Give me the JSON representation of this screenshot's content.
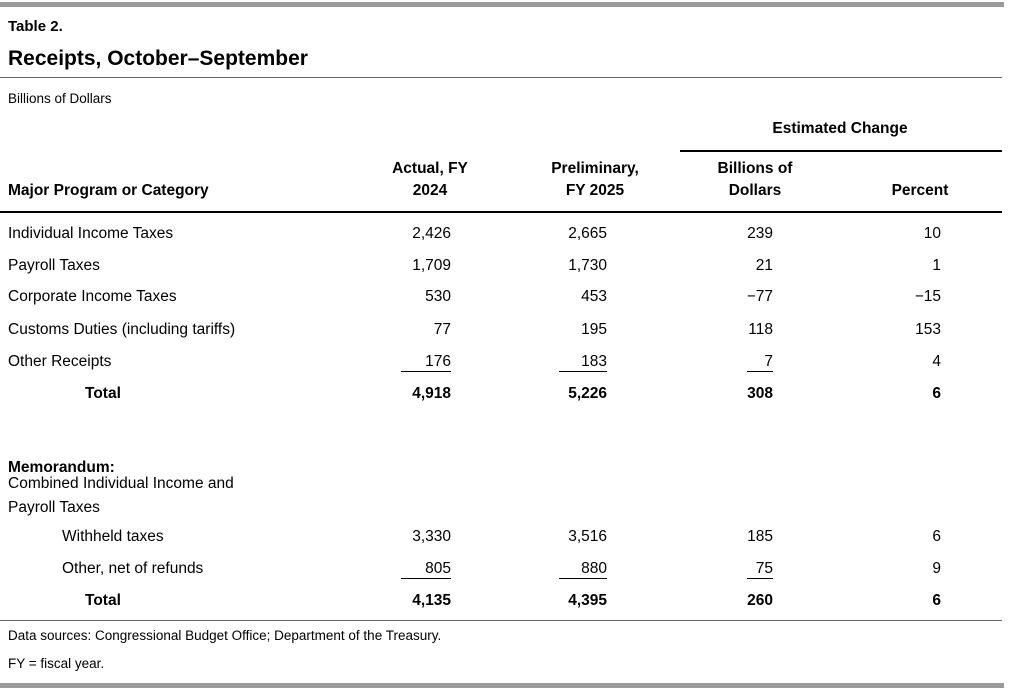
{
  "header": {
    "label": "Table 2.",
    "title": "Receipts, October–September",
    "units": "Billions of Dollars"
  },
  "table": {
    "group_header": "Estimated Change",
    "columns": [
      "Major Program or Category",
      "Actual, FY 2024",
      "Preliminary, FY 2025",
      "Billions of Dollars",
      "Percent"
    ],
    "rows": [
      [
        "Individual Income Taxes",
        "2,426",
        "2,665",
        "239",
        "10"
      ],
      [
        "Payroll Taxes",
        "1,709",
        "1,730",
        "21",
        "1"
      ],
      [
        "Corporate Income Taxes",
        "530",
        "453",
        "−77",
        "−15"
      ],
      [
        "Customs Duties (including tariffs)",
        "77",
        "195",
        "118",
        "153"
      ],
      [
        "Other Receipts",
        "176",
        "183",
        "7",
        "4"
      ],
      [
        "Total",
        "4,918",
        "5,226",
        "308",
        "6"
      ]
    ],
    "memo": {
      "heading": "Memorandum:",
      "description": "Combined Individual Income and Payroll Taxes",
      "rows": [
        [
          "Withheld taxes",
          "3,330",
          "3,516",
          "185",
          "6"
        ],
        [
          "Other, net of refunds",
          "805",
          "880",
          "75",
          "9"
        ],
        [
          "Total",
          "4,135",
          "4,395",
          "260",
          "6"
        ]
      ]
    }
  },
  "footer": {
    "sources": "Data sources: Congressional Budget Office; Department of the Treasury.",
    "note": "FY = fiscal year."
  }
}
